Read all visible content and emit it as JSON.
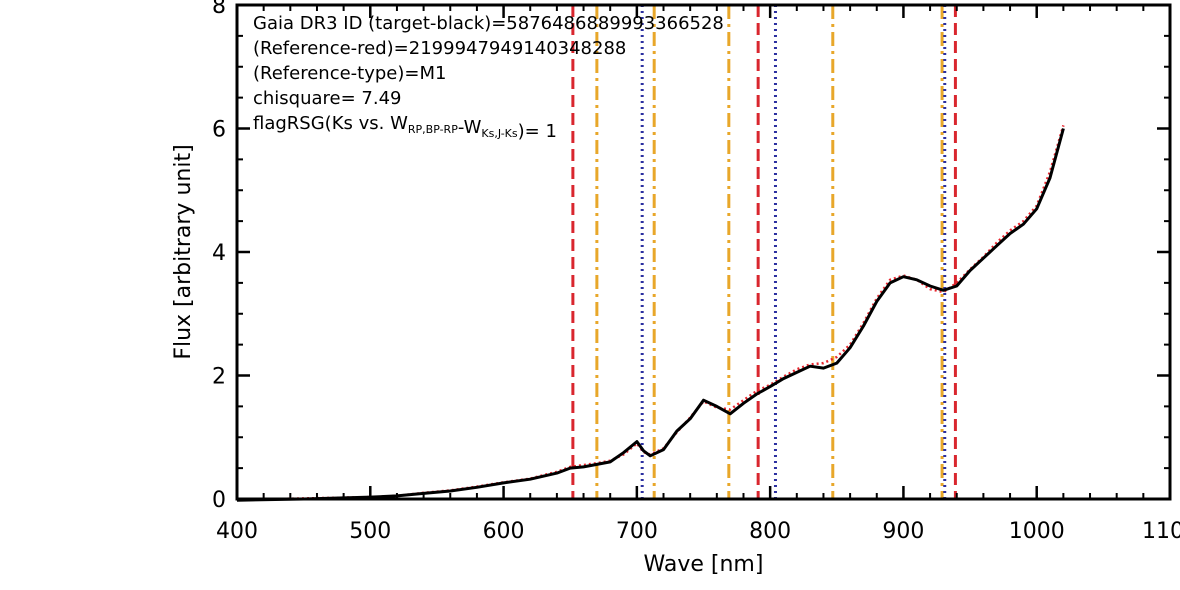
{
  "chart_data": {
    "type": "line",
    "xlabel": "Wave [nm]",
    "ylabel": "Flux [arbitrary unit]",
    "xlim": [
      400,
      1100
    ],
    "ylim": [
      0,
      8
    ],
    "xticks": [
      400,
      500,
      600,
      700,
      800,
      900,
      1000,
      1100
    ],
    "xtick_labels": [
      "400",
      "500",
      "600",
      "700",
      "800",
      "900",
      "1000",
      "1100"
    ],
    "yticks": [
      0,
      2,
      4,
      6,
      8
    ],
    "ytick_labels": [
      "0",
      "2",
      "4",
      "6",
      "8"
    ],
    "annotations": [
      {
        "parts": [
          {
            "t": "Gaia DR3 ID (target-black)=5876486889993366528"
          }
        ]
      },
      {
        "parts": [
          {
            "t": "(Reference-red)=2199947949140348288"
          }
        ]
      },
      {
        "parts": [
          {
            "t": "(Reference-type)=M1"
          }
        ]
      },
      {
        "parts": [
          {
            "t": "chisquare= 7.49"
          }
        ]
      },
      {
        "parts": [
          {
            "t": "flagRSG(Ks vs. W"
          },
          {
            "t": "RP,BP-RP",
            "sub": true
          },
          {
            "t": "-W"
          },
          {
            "t": "Ks,J-Ks",
            "sub": true
          },
          {
            "t": ")= 1"
          }
        ]
      }
    ],
    "series": [
      {
        "color": "#000000",
        "style": "solid",
        "x": [
          400,
          450,
          500,
          520,
          540,
          560,
          580,
          600,
          620,
          640,
          650,
          660,
          670,
          680,
          690,
          700,
          705,
          710,
          720,
          730,
          740,
          750,
          760,
          770,
          780,
          790,
          800,
          810,
          820,
          830,
          840,
          850,
          860,
          870,
          880,
          890,
          900,
          910,
          920,
          930,
          940,
          950,
          960,
          970,
          980,
          990,
          1000,
          1010,
          1020
        ],
        "y": [
          -0.02,
          0.0,
          0.03,
          0.05,
          0.09,
          0.13,
          0.19,
          0.26,
          0.32,
          0.42,
          0.5,
          0.52,
          0.56,
          0.6,
          0.75,
          0.93,
          0.78,
          0.7,
          0.8,
          1.1,
          1.3,
          1.6,
          1.5,
          1.38,
          1.55,
          1.7,
          1.82,
          1.95,
          2.05,
          2.15,
          2.12,
          2.2,
          2.45,
          2.8,
          3.2,
          3.5,
          3.6,
          3.55,
          3.45,
          3.38,
          3.45,
          3.7,
          3.9,
          4.1,
          4.3,
          4.45,
          4.7,
          5.2,
          6.0
        ]
      },
      {
        "color": "#e8262e",
        "style": "dotted",
        "x": [
          400,
          450,
          500,
          520,
          540,
          560,
          580,
          600,
          620,
          640,
          650,
          660,
          670,
          680,
          690,
          700,
          705,
          710,
          720,
          730,
          740,
          750,
          760,
          770,
          780,
          790,
          800,
          810,
          820,
          830,
          840,
          850,
          860,
          870,
          880,
          890,
          900,
          910,
          920,
          930,
          940,
          950,
          960,
          970,
          980,
          990,
          1000,
          1010,
          1020
        ],
        "y": [
          -0.01,
          0.01,
          0.03,
          0.05,
          0.1,
          0.14,
          0.2,
          0.27,
          0.33,
          0.44,
          0.52,
          0.55,
          0.58,
          0.62,
          0.72,
          0.9,
          0.76,
          0.72,
          0.82,
          1.08,
          1.32,
          1.58,
          1.48,
          1.45,
          1.6,
          1.75,
          1.85,
          1.98,
          2.1,
          2.18,
          2.2,
          2.3,
          2.5,
          2.85,
          3.25,
          3.55,
          3.62,
          3.55,
          3.4,
          3.35,
          3.5,
          3.72,
          3.92,
          4.15,
          4.35,
          4.5,
          4.75,
          5.3,
          6.05
        ]
      }
    ],
    "vlines": [
      {
        "x": 652,
        "color": "#d9262e",
        "style": "dashed"
      },
      {
        "x": 670,
        "color": "#e8a72a",
        "style": "dashdot"
      },
      {
        "x": 704,
        "color": "#2b2fa0",
        "style": "dotted"
      },
      {
        "x": 713,
        "color": "#e8a72a",
        "style": "dashdot"
      },
      {
        "x": 769,
        "color": "#e8a72a",
        "style": "dashdot"
      },
      {
        "x": 791,
        "color": "#d9262e",
        "style": "dashed"
      },
      {
        "x": 804,
        "color": "#2b2fa0",
        "style": "dotted"
      },
      {
        "x": 847,
        "color": "#e8a72a",
        "style": "dashdot"
      },
      {
        "x": 929,
        "color": "#e8a72a",
        "style": "dashdot"
      },
      {
        "x": 931,
        "color": "#2b2fa0",
        "style": "dotted"
      },
      {
        "x": 939,
        "color": "#d9262e",
        "style": "dashed"
      }
    ]
  }
}
